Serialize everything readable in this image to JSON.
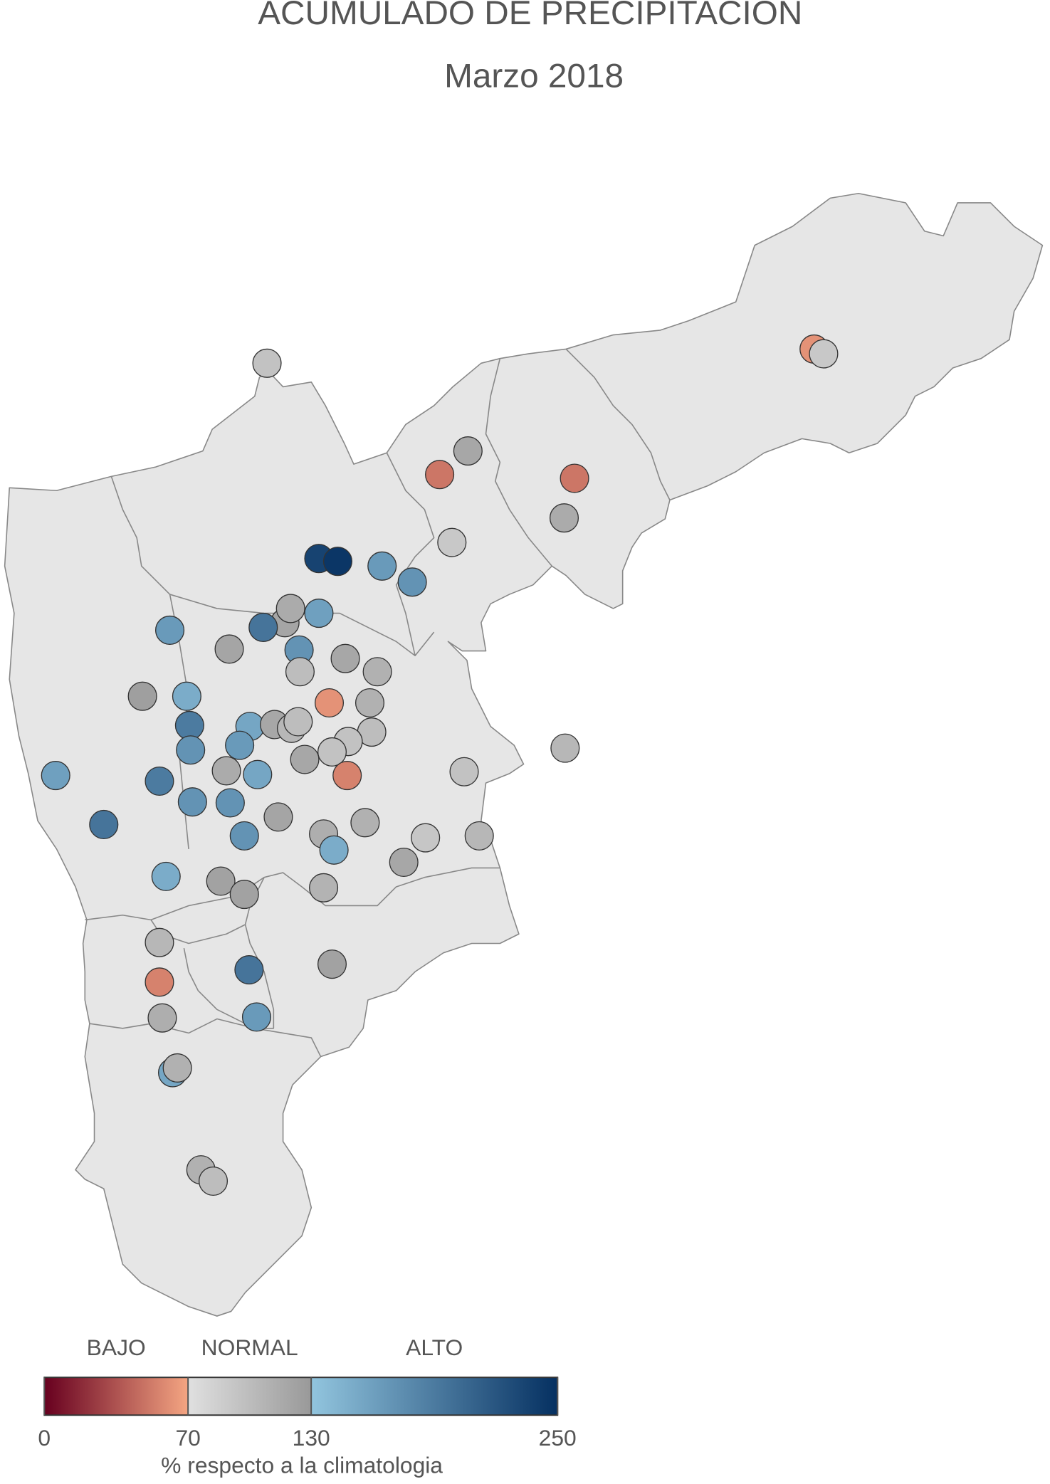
{
  "title": "ACUMULADO DE PRECIPITACION",
  "subtitle": "Marzo 2018",
  "legend": {
    "classes": [
      {
        "label": "BAJO",
        "range": [
          0,
          70
        ],
        "colors": [
          "#67001f",
          "#f4a582"
        ]
      },
      {
        "label": "NORMAL",
        "range": [
          70,
          130
        ],
        "colors": [
          "#e0e0e0",
          "#999999"
        ]
      },
      {
        "label": "ALTO",
        "range": [
          130,
          250
        ],
        "colors": [
          "#92c5de",
          "#053061"
        ]
      }
    ],
    "lim": [
      0,
      250
    ],
    "ticks": [
      0,
      70,
      130,
      250
    ],
    "axis_label": "% respecto a la climatologia"
  },
  "stations": {
    "values": [
      95,
      62,
      90,
      50,
      118,
      50,
      115,
      90,
      235,
      245,
      165,
      170,
      120,
      115,
      160,
      195,
      165,
      120,
      170,
      118,
      100,
      110,
      125,
      150,
      62,
      110,
      190,
      155,
      118,
      105,
      100,
      100,
      95,
      95,
      165,
      170,
      118,
      105,
      115,
      155,
      55,
      95,
      160,
      190,
      170,
      170,
      120,
      195,
      110,
      170,
      112,
      92,
      105,
      150,
      118,
      150,
      122,
      122,
      108,
      105,
      195,
      122,
      55,
      165,
      112,
      155,
      110,
      110,
      100
    ]
  }
}
